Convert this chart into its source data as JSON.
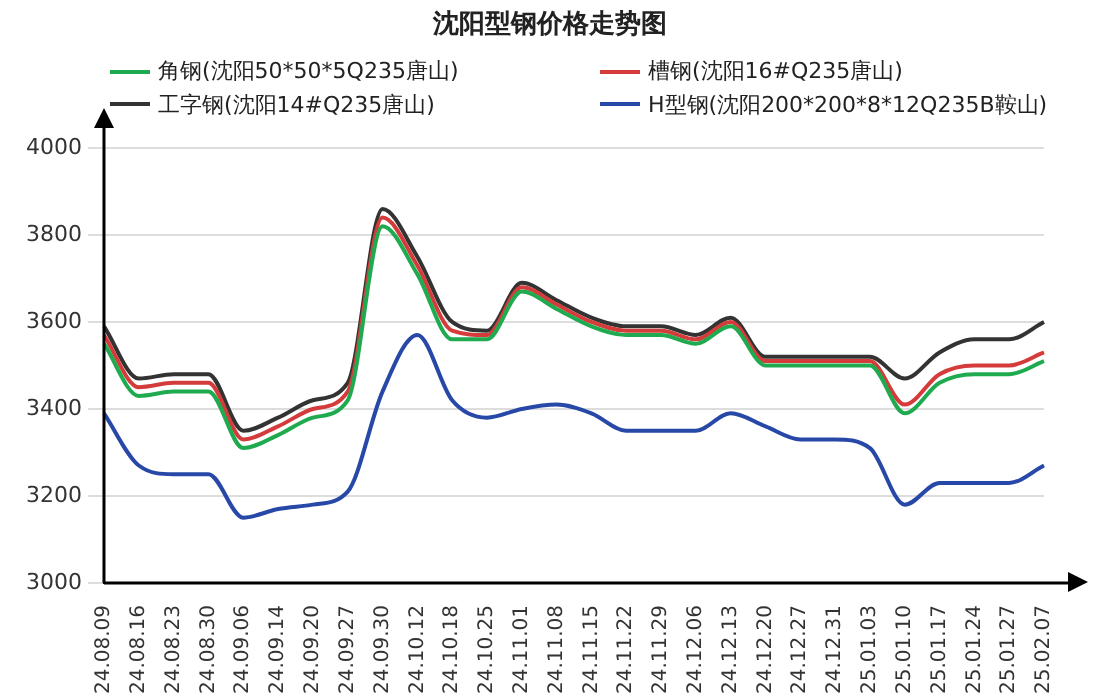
{
  "chart_data": {
    "type": "line",
    "title": "沈阳型钢价格走势图",
    "categories": [
      "24.08.09",
      "24.08.16",
      "24.08.23",
      "24.08.30",
      "24.09.06",
      "24.09.14",
      "24.09.20",
      "24.09.27",
      "24.09.30",
      "24.10.12",
      "24.10.18",
      "24.10.25",
      "24.11.01",
      "24.11.08",
      "24.11.15",
      "24.11.22",
      "24.11.29",
      "24.12.06",
      "24.12.13",
      "24.12.20",
      "24.12.27",
      "24.12.31",
      "25.01.03",
      "25.01.10",
      "25.01.17",
      "25.01.24",
      "25.01.27",
      "25.02.07"
    ],
    "series": [
      {
        "name": "角钢(沈阳50*50*5Q235唐山)",
        "color": "#1faa50",
        "values": [
          3550,
          3430,
          3440,
          3440,
          3310,
          3340,
          3380,
          3420,
          3820,
          3710,
          3560,
          3560,
          3670,
          3630,
          3590,
          3570,
          3570,
          3550,
          3590,
          3500,
          3500,
          3500,
          3500,
          3390,
          3460,
          3480,
          3480,
          3510
        ]
      },
      {
        "name": "槽钢(沈阳16#Q235唐山)",
        "color": "#d43c3c",
        "values": [
          3570,
          3450,
          3460,
          3460,
          3330,
          3360,
          3400,
          3440,
          3840,
          3730,
          3580,
          3570,
          3680,
          3640,
          3600,
          3580,
          3580,
          3560,
          3600,
          3510,
          3510,
          3510,
          3510,
          3410,
          3480,
          3500,
          3500,
          3530
        ]
      },
      {
        "name": "工字钢(沈阳14#Q235唐山)",
        "color": "#333333",
        "values": [
          3590,
          3470,
          3480,
          3480,
          3350,
          3380,
          3420,
          3460,
          3860,
          3750,
          3600,
          3580,
          3690,
          3650,
          3610,
          3590,
          3590,
          3570,
          3610,
          3520,
          3520,
          3520,
          3520,
          3470,
          3530,
          3560,
          3560,
          3600
        ]
      },
      {
        "name": "H型钢(沈阳200*200*8*12Q235B鞍山)",
        "color": "#2848a8",
        "values": [
          3390,
          3270,
          3250,
          3250,
          3150,
          3170,
          3180,
          3210,
          3440,
          3570,
          3420,
          3380,
          3400,
          3410,
          3390,
          3350,
          3350,
          3350,
          3390,
          3360,
          3330,
          3330,
          3310,
          3180,
          3230,
          3230,
          3230,
          3270
        ]
      }
    ],
    "ylim": [
      3000,
      4000
    ],
    "yticks": [
      3000,
      3200,
      3400,
      3600,
      3800,
      4000
    ],
    "grid": "y",
    "legend": "top",
    "marker": "none",
    "line_style": "solid"
  }
}
